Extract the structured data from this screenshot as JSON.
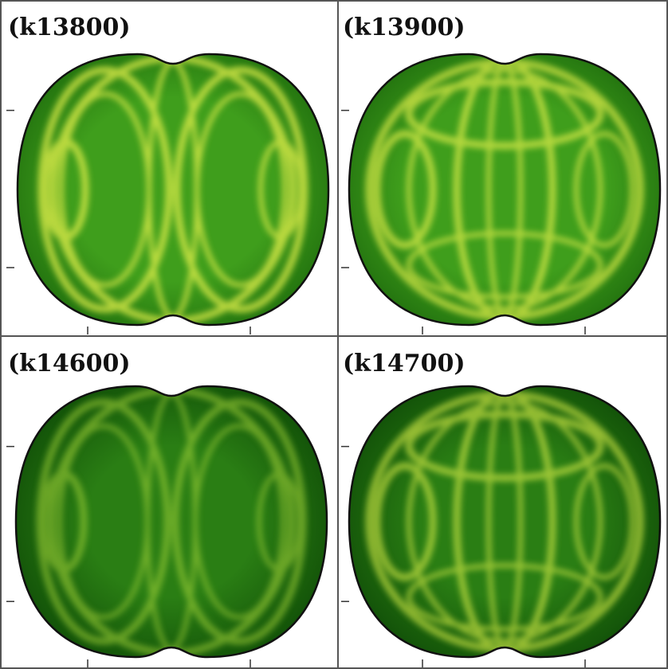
{
  "panels": [
    {
      "label": "(k13800)"
    },
    {
      "label": "(k13900)"
    },
    {
      "label": "(k14600)"
    },
    {
      "label": "(k14700)"
    }
  ]
}
